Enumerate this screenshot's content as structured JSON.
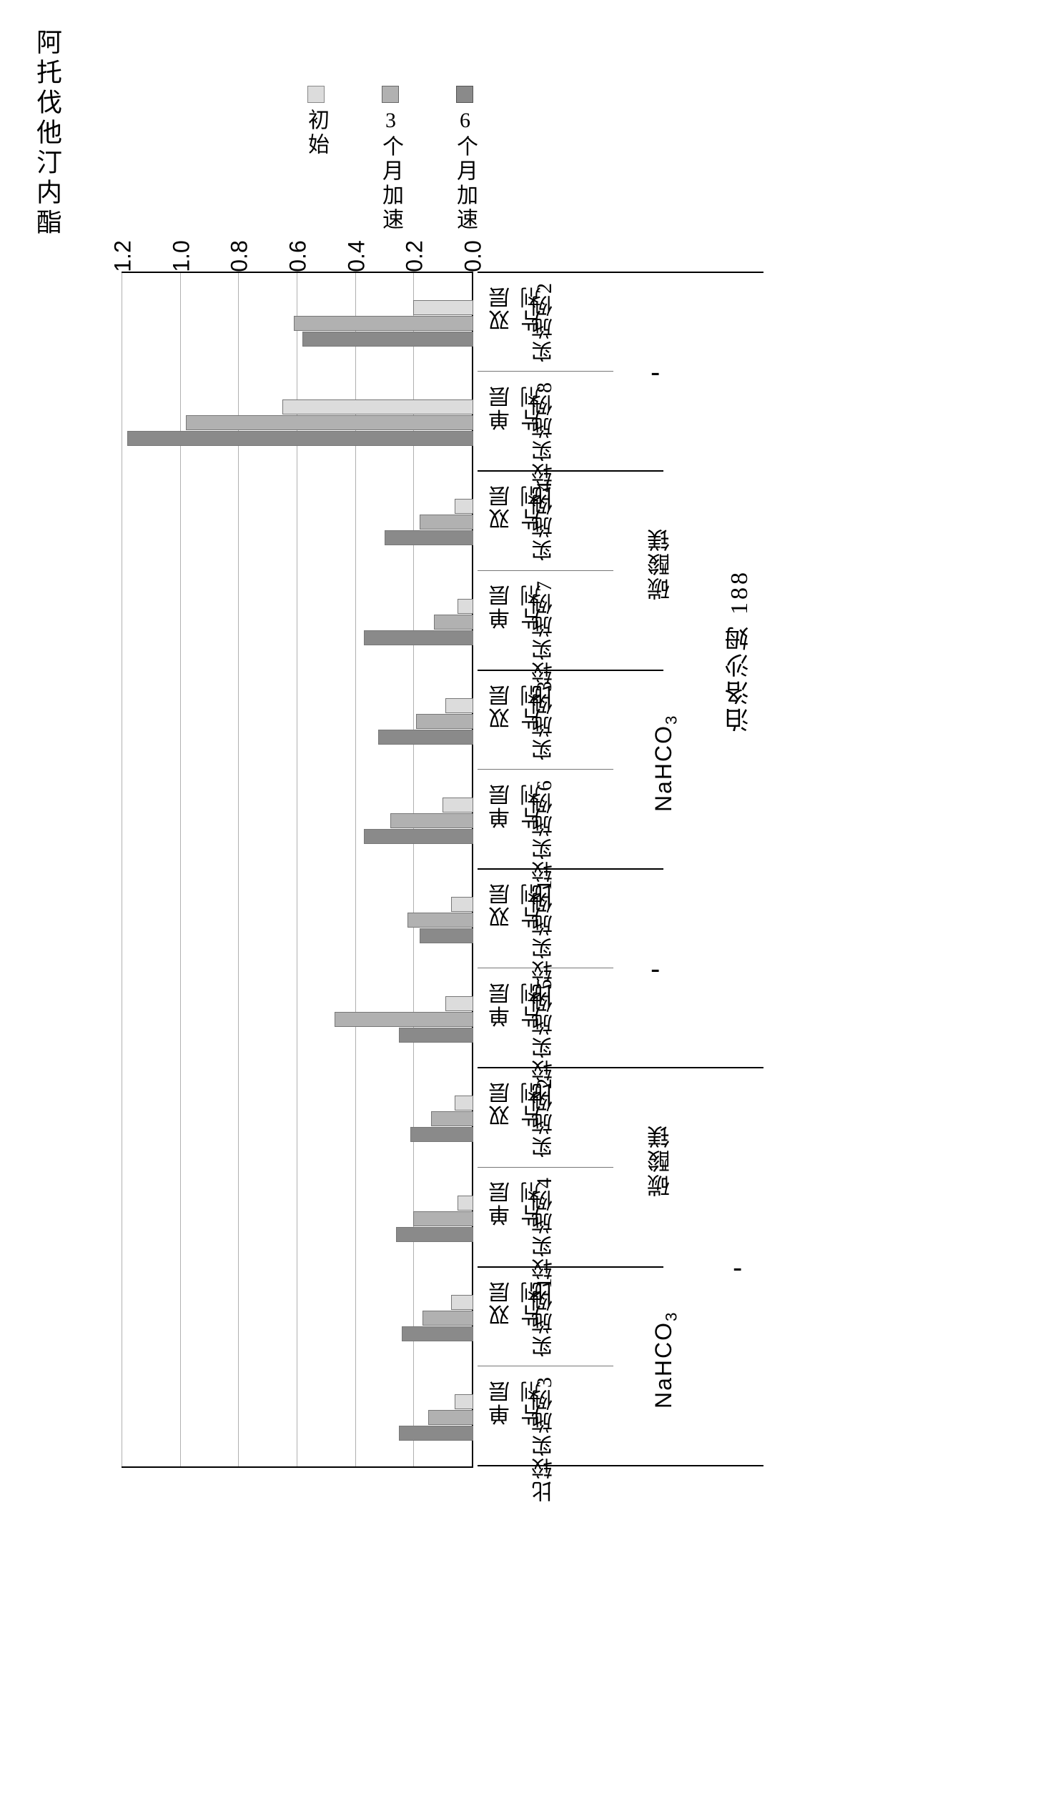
{
  "chart": {
    "type": "grouped-horizontal-bar",
    "title": "阿托伐他汀内酯",
    "title_fontsize": 36,
    "background_color": "#ffffff",
    "grid_color": "#b0b0b0",
    "border_color": "#000000",
    "axis_fontsize": 32,
    "label_fontsize": 30,
    "legend": {
      "items": [
        {
          "label": "初始",
          "swatch": "#dcdcdc",
          "border": "#888888"
        },
        {
          "label": "3个月加速",
          "swatch": "#b1b1b1",
          "border": "#666666"
        },
        {
          "label": "6个月加速",
          "swatch": "#8a8a8a",
          "border": "#555555"
        }
      ]
    },
    "y_axis": {
      "min": 0.0,
      "max": 1.2,
      "ticks": [
        0.0,
        0.2,
        0.4,
        0.6,
        0.8,
        1.0,
        1.2
      ],
      "tick_labels": [
        "0.0",
        "0.2",
        "0.4",
        "0.6",
        "0.8",
        "1.0",
        "1.2"
      ]
    },
    "series_colors": {
      "initial": "#dcdcdc",
      "m3": "#b1b1b1",
      "m6": "#8a8a8a"
    },
    "super_groups": [
      {
        "label": "-",
        "is_dash": true,
        "groups": [
          0,
          1
        ]
      },
      {
        "label": "泊洛沙姆 188",
        "is_dash": false,
        "groups": [
          2,
          3,
          4,
          5
        ]
      }
    ],
    "mid_groups": [
      {
        "label": "NaHCO3",
        "formula": true,
        "subgroups": [
          0,
          1
        ]
      },
      {
        "label": "碳酸镁",
        "formula": false,
        "subgroups": [
          2,
          3
        ]
      },
      {
        "label": "-",
        "is_dash": true,
        "subgroups": [
          4,
          5
        ]
      },
      {
        "label": "NaHCO3",
        "formula": true,
        "subgroups": [
          6,
          7
        ]
      },
      {
        "label": "碳酸镁",
        "formula": false,
        "subgroups": [
          8,
          9
        ]
      },
      {
        "label": "-",
        "is_dash": true,
        "subgroups": [
          10,
          11
        ]
      }
    ],
    "subgroups": [
      {
        "label1": "单层片剂",
        "label2": "比较实施例3",
        "values": [
          0.06,
          0.15,
          0.25
        ]
      },
      {
        "label1": "双层片剂",
        "label2": "实施例1",
        "values": [
          0.07,
          0.17,
          0.24
        ]
      },
      {
        "label1": "单层片剂",
        "label2": "比较实施例4",
        "values": [
          0.05,
          0.2,
          0.26
        ]
      },
      {
        "label1": "双层片剂",
        "label2": "实施例2",
        "values": [
          0.06,
          0.14,
          0.21
        ]
      },
      {
        "label1": "单层片剂",
        "label2": "比较实施例5",
        "values": [
          0.09,
          0.47,
          0.25
        ]
      },
      {
        "label1": "双层片剂",
        "label2": "比较实施例1",
        "values": [
          0.07,
          0.22,
          0.18
        ]
      },
      {
        "label1": "单层片剂",
        "label2": "比较实施例6",
        "values": [
          0.1,
          0.28,
          0.37
        ]
      },
      {
        "label1": "双层片剂",
        "label2": "实施例3",
        "values": [
          0.09,
          0.19,
          0.32
        ]
      },
      {
        "label1": "单层片剂",
        "label2": "比较实施例7",
        "values": [
          0.05,
          0.13,
          0.37
        ]
      },
      {
        "label1": "双层片剂",
        "label2": "实施例4",
        "values": [
          0.06,
          0.18,
          0.3
        ]
      },
      {
        "label1": "单层片剂",
        "label2": "比较实施例8",
        "values": [
          0.65,
          0.98,
          1.18
        ]
      },
      {
        "label1": "双层片剂",
        "label2": "实施例2",
        "values": [
          0.2,
          0.61,
          0.58
        ]
      }
    ]
  }
}
